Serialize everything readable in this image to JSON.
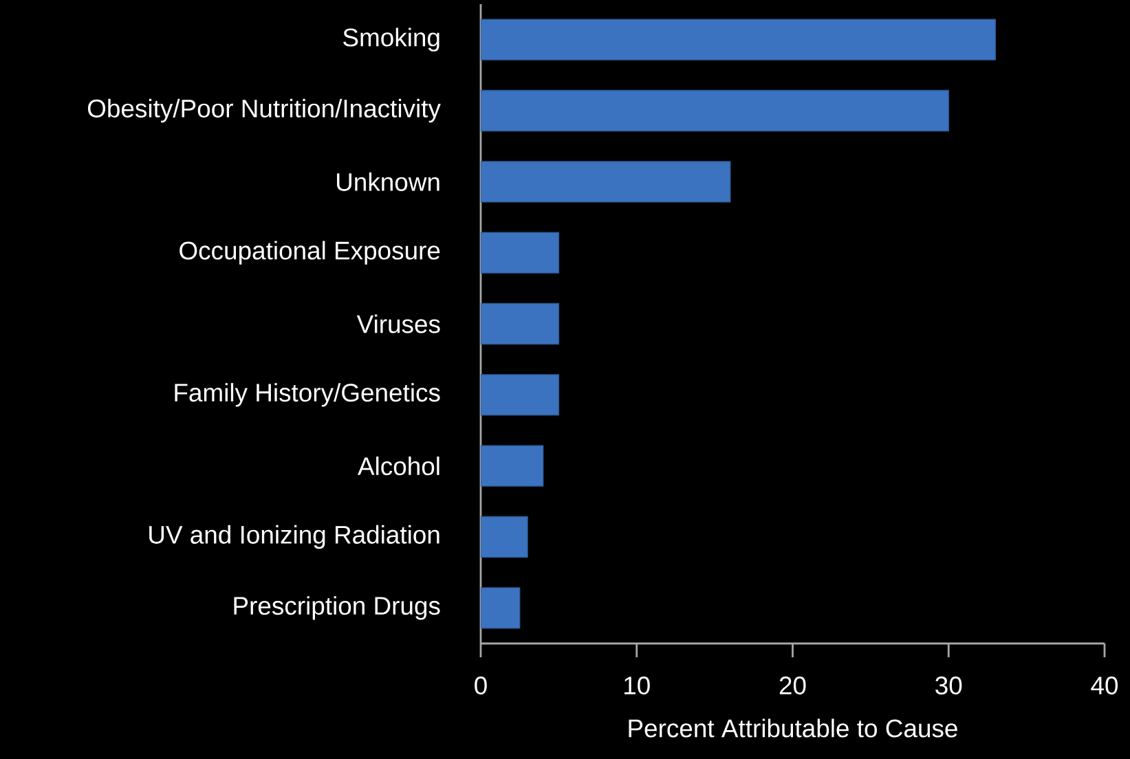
{
  "chart_data": {
    "type": "bar",
    "orientation": "horizontal",
    "color": "#3b73c0",
    "categories": [
      "Smoking",
      "Obesity/Poor Nutrition/Inactivity",
      "Unknown",
      "Occupational Exposure",
      "Viruses",
      "Family History/Genetics",
      "Alcohol",
      "UV and Ionizing Radiation",
      "Prescription Drugs"
    ],
    "values": [
      33,
      30,
      16,
      5,
      5,
      5,
      4,
      3,
      2.5
    ],
    "xlabel": "Percent Attributable to Cause",
    "xlim": [
      0,
      40
    ],
    "xticks": [
      0,
      10,
      20,
      30,
      40
    ]
  }
}
